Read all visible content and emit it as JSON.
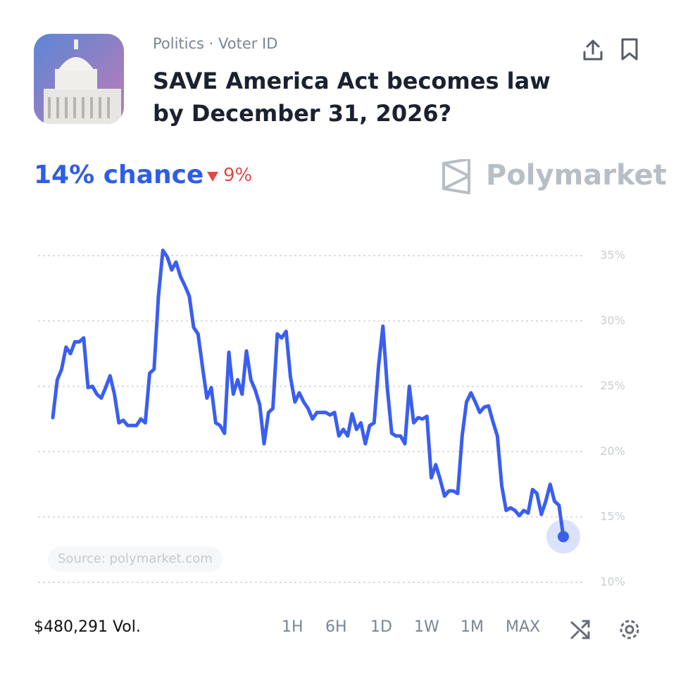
{
  "header": {
    "breadcrumb": "Politics · Voter ID",
    "title": "SAVE America Act becomes law by December 31, 2026?"
  },
  "summary": {
    "chance": "14% chance",
    "change": "9%",
    "brand": "Polymarket"
  },
  "chart_data": {
    "type": "line",
    "color": "#3a5ef0",
    "source": "Source: polymarket.com",
    "ylim": [
      10,
      36
    ],
    "yticks": [
      {
        "value": 10,
        "label": "10%"
      },
      {
        "value": 15,
        "label": "15%"
      },
      {
        "value": 20,
        "label": "20%"
      },
      {
        "value": 25,
        "label": "25%"
      },
      {
        "value": 30,
        "label": "30%"
      },
      {
        "value": 35,
        "label": "35%"
      }
    ],
    "grid": true,
    "values": [
      22.6,
      25.5,
      26.3,
      28.0,
      27.5,
      28.4,
      28.4,
      28.7,
      24.9,
      25.0,
      24.4,
      24.1,
      24.9,
      25.8,
      24.4,
      22.2,
      22.4,
      22.0,
      22.0,
      22.0,
      22.5,
      22.2,
      26.0,
      26.3,
      31.9,
      35.4,
      34.9,
      33.9,
      34.5,
      33.4,
      32.7,
      31.9,
      29.5,
      29.0,
      26.5,
      24.1,
      24.9,
      22.2,
      22.0,
      21.4,
      27.6,
      24.4,
      25.5,
      24.4,
      27.7,
      25.5,
      24.7,
      23.6,
      20.6,
      23.0,
      23.3,
      29.0,
      28.7,
      29.2,
      25.7,
      23.8,
      24.5,
      23.8,
      23.3,
      22.5,
      23.0,
      23.0,
      23.0,
      22.8,
      23.0,
      21.2,
      21.7,
      21.2,
      22.9,
      21.7,
      22.2,
      20.6,
      22.0,
      22.2,
      26.5,
      29.6,
      24.9,
      21.4,
      21.2,
      21.2,
      20.6,
      25.0,
      22.2,
      22.6,
      22.5,
      22.7,
      18.0,
      19.0,
      17.9,
      16.6,
      17.0,
      17.0,
      16.8,
      21.2,
      23.8,
      24.5,
      23.8,
      23.0,
      23.4,
      23.5,
      22.3,
      21.2,
      17.4,
      15.5,
      15.7,
      15.5,
      15.1,
      15.5,
      15.3,
      17.1,
      16.8,
      15.2,
      16.2,
      17.5,
      16.2,
      15.9,
      13.5
    ]
  },
  "footer": {
    "volume": "$480,291 Vol.",
    "ranges": [
      "1H",
      "6H",
      "1D",
      "1W",
      "1M",
      "MAX"
    ]
  }
}
